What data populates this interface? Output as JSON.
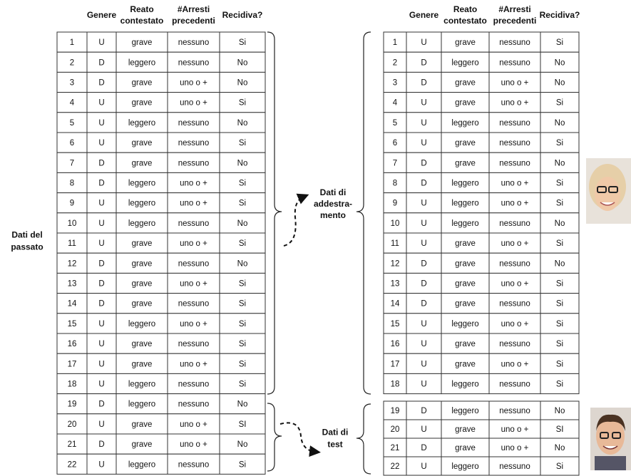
{
  "past_label": [
    "Dati del",
    "passato"
  ],
  "train_label": [
    "Dati di",
    "addestra-",
    "mento"
  ],
  "test_label": [
    "Dati di",
    "test"
  ],
  "headers": [
    [
      "Genere"
    ],
    [
      "Reato",
      "contestato"
    ],
    [
      "#Arresti",
      "precedenti"
    ],
    [
      "Recidiva?"
    ]
  ],
  "left_table": {
    "rows": [
      [
        1,
        "U",
        "grave",
        "nessuno",
        "Si"
      ],
      [
        2,
        "D",
        "leggero",
        "nessuno",
        "No"
      ],
      [
        3,
        "D",
        "grave",
        "uno o +",
        "No"
      ],
      [
        4,
        "U",
        "grave",
        "uno o +",
        "Si"
      ],
      [
        5,
        "U",
        "leggero",
        "nessuno",
        "No"
      ],
      [
        6,
        "U",
        "grave",
        "nessuno",
        "Si"
      ],
      [
        7,
        "D",
        "grave",
        "nessuno",
        "No"
      ],
      [
        8,
        "D",
        "leggero",
        "uno o +",
        "Si"
      ],
      [
        9,
        "U",
        "leggero",
        "uno o +",
        "Si"
      ],
      [
        10,
        "U",
        "leggero",
        "nessuno",
        "No"
      ],
      [
        11,
        "U",
        "grave",
        "uno o +",
        "Si"
      ],
      [
        12,
        "D",
        "grave",
        "nessuno",
        "No"
      ],
      [
        13,
        "D",
        "grave",
        "uno o +",
        "Si"
      ],
      [
        14,
        "D",
        "grave",
        "nessuno",
        "Si"
      ],
      [
        15,
        "U",
        "leggero",
        "uno o +",
        "Si"
      ],
      [
        16,
        "U",
        "grave",
        "nessuno",
        "Si"
      ],
      [
        17,
        "U",
        "grave",
        "uno o +",
        "Si"
      ],
      [
        18,
        "U",
        "leggero",
        "nessuno",
        "Si"
      ],
      [
        19,
        "D",
        "leggero",
        "nessuno",
        "No"
      ],
      [
        20,
        "U",
        "grave",
        "uno o +",
        "SI"
      ],
      [
        21,
        "D",
        "grave",
        "uno o +",
        "No"
      ],
      [
        22,
        "U",
        "leggero",
        "nessuno",
        "Si"
      ]
    ]
  },
  "train_table": {
    "rows": [
      [
        1,
        "U",
        "grave",
        "nessuno",
        "Si"
      ],
      [
        2,
        "D",
        "leggero",
        "nessuno",
        "No"
      ],
      [
        3,
        "D",
        "grave",
        "uno o +",
        "No"
      ],
      [
        4,
        "U",
        "grave",
        "uno o +",
        "Si"
      ],
      [
        5,
        "U",
        "leggero",
        "nessuno",
        "No"
      ],
      [
        6,
        "U",
        "grave",
        "nessuno",
        "Si"
      ],
      [
        7,
        "D",
        "grave",
        "nessuno",
        "No"
      ],
      [
        8,
        "D",
        "leggero",
        "uno o +",
        "Si"
      ],
      [
        9,
        "U",
        "leggero",
        "uno o +",
        "Si"
      ],
      [
        10,
        "U",
        "leggero",
        "nessuno",
        "No"
      ],
      [
        11,
        "U",
        "grave",
        "uno o +",
        "Si"
      ],
      [
        12,
        "D",
        "grave",
        "nessuno",
        "No"
      ],
      [
        13,
        "D",
        "grave",
        "uno o +",
        "Si"
      ],
      [
        14,
        "D",
        "grave",
        "nessuno",
        "Si"
      ],
      [
        15,
        "U",
        "leggero",
        "uno o +",
        "Si"
      ],
      [
        16,
        "U",
        "grave",
        "nessuno",
        "Si"
      ],
      [
        17,
        "U",
        "grave",
        "uno o +",
        "Si"
      ],
      [
        18,
        "U",
        "leggero",
        "nessuno",
        "Si"
      ]
    ]
  },
  "test_table": {
    "rows": [
      [
        19,
        "D",
        "leggero",
        "nessuno",
        "No"
      ],
      [
        20,
        "U",
        "grave",
        "uno o +",
        "SI"
      ],
      [
        21,
        "D",
        "grave",
        "uno o +",
        "No"
      ],
      [
        22,
        "U",
        "leggero",
        "nessuno",
        "Si"
      ]
    ]
  }
}
